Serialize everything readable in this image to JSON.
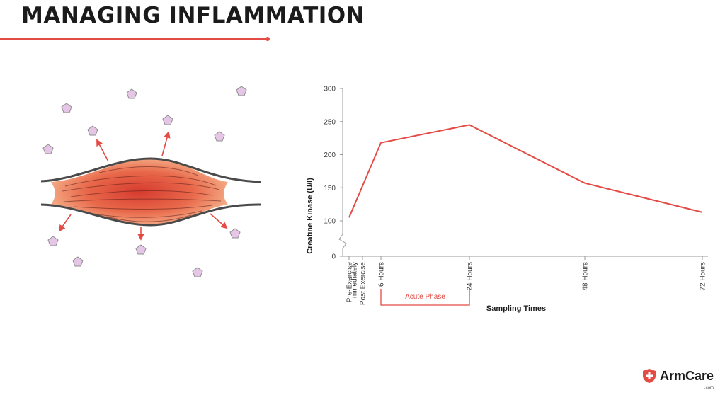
{
  "page": {
    "title": "MANAGING INFLAMMATION",
    "accent_color": "#e34b45",
    "title_color": "#1b1b1b"
  },
  "illustration": {
    "subject": "muscle-fiber",
    "particle_color": "#e6c6e6",
    "arrow_color": "#e34b45"
  },
  "chart_data": {
    "type": "line",
    "ylabel": "Creatine Kinase (U/l)",
    "xlabel": "Sampling Times",
    "ylim": [
      0,
      300
    ],
    "y_axis_break": [
      0,
      100
    ],
    "y_ticks": [
      0,
      100,
      150,
      200,
      250,
      300
    ],
    "x_ticks": [
      {
        "label": "Pre-Exercise",
        "hours": 0,
        "lines": [
          "Pre-Exercise"
        ]
      },
      {
        "label": "Immediately Post Exercise",
        "hours": 1,
        "lines": [
          "Immediately",
          "Post Exercise"
        ]
      },
      {
        "label": "6 Hours",
        "hours": 6,
        "lines": [
          "6 Hours"
        ]
      },
      {
        "label": "24 Hours",
        "hours": 24,
        "lines": [
          "24 Hours"
        ]
      },
      {
        "label": "48 Hours",
        "hours": 48,
        "lines": [
          "48 Hours"
        ]
      },
      {
        "label": "72 Hours",
        "hours": 72,
        "lines": [
          "72 Hours"
        ]
      }
    ],
    "series": [
      {
        "name": "Creatine Kinase",
        "color": "#e34b45",
        "points": [
          {
            "hours": 0,
            "value": 105
          },
          {
            "hours": 6,
            "value": 218
          },
          {
            "hours": 24,
            "value": 245
          },
          {
            "hours": 48,
            "value": 157
          },
          {
            "hours": 72,
            "value": 113
          }
        ]
      }
    ],
    "annotations": [
      {
        "label": "Acute Phase",
        "from_hours": 6,
        "to_hours": 24,
        "color": "#e34b45"
      }
    ]
  },
  "brand": {
    "name": "ArmCare",
    "suffix": ".com"
  }
}
